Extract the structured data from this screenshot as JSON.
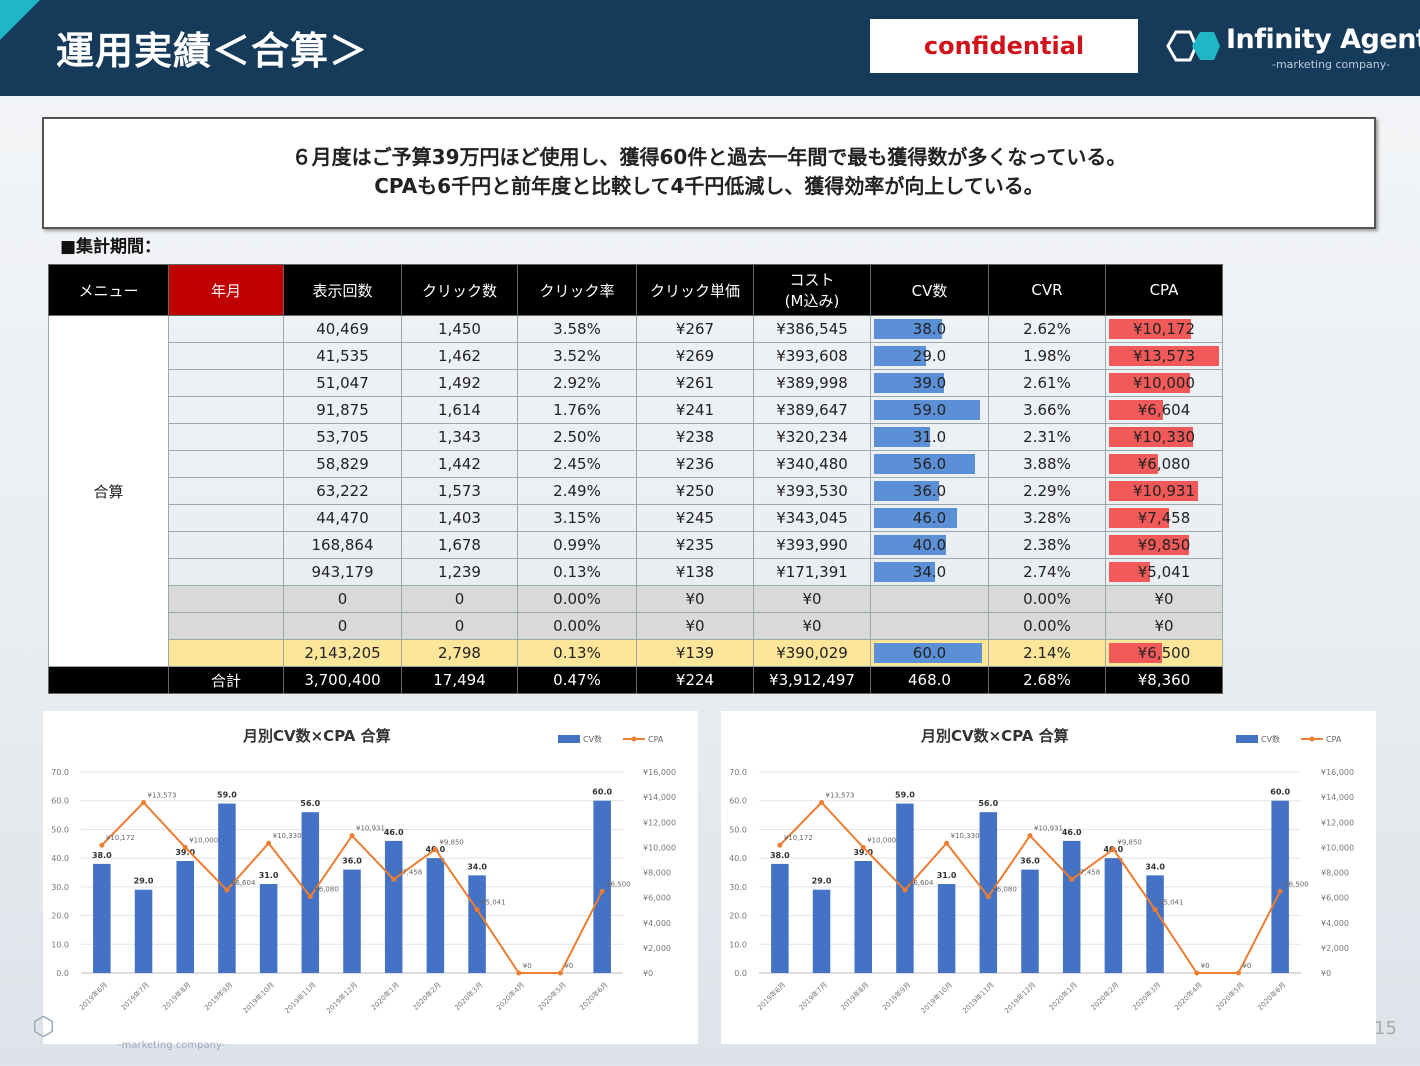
{
  "header": {
    "title": "運用実績＜合算＞",
    "confidential": "confidential",
    "logo_name": "Infinity Agent",
    "logo_sub": "-marketing company-"
  },
  "summary": {
    "line1": "６月度はご予算39万円ほど使用し、獲得60件と過去一年間で最も獲得数が多くなっている。",
    "line2": "CPAも6千円と前年度と比較して4千円低減し、獲得効率が向上している。"
  },
  "period_label": "■集計期間：",
  "table": {
    "headers": [
      "メニュー",
      "年月",
      "表示回数",
      "クリック数",
      "クリック率",
      "クリック単価",
      "コスト\n(M込み)",
      "CV数",
      "CVR",
      "CPA"
    ],
    "menu_label": "合算",
    "cv_max": 60,
    "cpa_max": 13573,
    "rows": [
      {
        "imp": "40,469",
        "clicks": "1,450",
        "ctr": "3.58%",
        "cpc": "¥267",
        "cost": "¥386,545",
        "cv": "38.0",
        "cv_num": 38,
        "cvr": "2.62%",
        "cpa": "¥10,172",
        "cpa_num": 10172,
        "style": ""
      },
      {
        "imp": "41,535",
        "clicks": "1,462",
        "ctr": "3.52%",
        "cpc": "¥269",
        "cost": "¥393,608",
        "cv": "29.0",
        "cv_num": 29,
        "cvr": "1.98%",
        "cpa": "¥13,573",
        "cpa_num": 13573,
        "style": ""
      },
      {
        "imp": "51,047",
        "clicks": "1,492",
        "ctr": "2.92%",
        "cpc": "¥261",
        "cost": "¥389,998",
        "cv": "39.0",
        "cv_num": 39,
        "cvr": "2.61%",
        "cpa": "¥10,000",
        "cpa_num": 10000,
        "style": ""
      },
      {
        "imp": "91,875",
        "clicks": "1,614",
        "ctr": "1.76%",
        "cpc": "¥241",
        "cost": "¥389,647",
        "cv": "59.0",
        "cv_num": 59,
        "cvr": "3.66%",
        "cpa": "¥6,604",
        "cpa_num": 6604,
        "style": ""
      },
      {
        "imp": "53,705",
        "clicks": "1,343",
        "ctr": "2.50%",
        "cpc": "¥238",
        "cost": "¥320,234",
        "cv": "31.0",
        "cv_num": 31,
        "cvr": "2.31%",
        "cpa": "¥10,330",
        "cpa_num": 10330,
        "style": ""
      },
      {
        "imp": "58,829",
        "clicks": "1,442",
        "ctr": "2.45%",
        "cpc": "¥236",
        "cost": "¥340,480",
        "cv": "56.0",
        "cv_num": 56,
        "cvr": "3.88%",
        "cpa": "¥6,080",
        "cpa_num": 6080,
        "style": ""
      },
      {
        "imp": "63,222",
        "clicks": "1,573",
        "ctr": "2.49%",
        "cpc": "¥250",
        "cost": "¥393,530",
        "cv": "36.0",
        "cv_num": 36,
        "cvr": "2.29%",
        "cpa": "¥10,931",
        "cpa_num": 10931,
        "style": ""
      },
      {
        "imp": "44,470",
        "clicks": "1,403",
        "ctr": "3.15%",
        "cpc": "¥245",
        "cost": "¥343,045",
        "cv": "46.0",
        "cv_num": 46,
        "cvr": "3.28%",
        "cpa": "¥7,458",
        "cpa_num": 7458,
        "style": ""
      },
      {
        "imp": "168,864",
        "clicks": "1,678",
        "ctr": "0.99%",
        "cpc": "¥235",
        "cost": "¥393,990",
        "cv": "40.0",
        "cv_num": 40,
        "cvr": "2.38%",
        "cpa": "¥9,850",
        "cpa_num": 9850,
        "style": ""
      },
      {
        "imp": "943,179",
        "clicks": "1,239",
        "ctr": "0.13%",
        "cpc": "¥138",
        "cost": "¥171,391",
        "cv": "34.0",
        "cv_num": 34,
        "cvr": "2.74%",
        "cpa": "¥5,041",
        "cpa_num": 5041,
        "style": ""
      },
      {
        "imp": "0",
        "clicks": "0",
        "ctr": "0.00%",
        "cpc": "¥0",
        "cost": "¥0",
        "cv": "",
        "cv_num": 0,
        "cvr": "0.00%",
        "cpa": "¥0",
        "cpa_num": 0,
        "style": "gray"
      },
      {
        "imp": "0",
        "clicks": "0",
        "ctr": "0.00%",
        "cpc": "¥0",
        "cost": "¥0",
        "cv": "",
        "cv_num": 0,
        "cvr": "0.00%",
        "cpa": "¥0",
        "cpa_num": 0,
        "style": "gray"
      },
      {
        "imp": "2,143,205",
        "clicks": "2,798",
        "ctr": "0.13%",
        "cpc": "¥139",
        "cost": "¥390,029",
        "cv": "60.0",
        "cv_num": 60,
        "cvr": "2.14%",
        "cpa": "¥6,500",
        "cpa_num": 6500,
        "style": "yellow"
      }
    ],
    "total": {
      "label": "合計",
      "imp": "3,700,400",
      "clicks": "17,494",
      "ctr": "0.47%",
      "cpc": "¥224",
      "cost": "¥3,912,497",
      "cv": "468.0",
      "cvr": "2.68%",
      "cpa": "¥8,360"
    }
  },
  "chart_data": [
    {
      "type": "bar",
      "title": "月別CV数×CPA 合算",
      "categories": [
        "2019年6月",
        "2019年7月",
        "2019年8月",
        "2019年9月",
        "2019年10月",
        "2019年11月",
        "2019年12月",
        "2020年1月",
        "2020年2月",
        "2020年3月",
        "2020年4月",
        "2020年5月",
        "2020年6月"
      ],
      "series": [
        {
          "name": "CV数",
          "type": "bar",
          "axis": "left",
          "color": "#4472c4",
          "values": [
            38,
            29,
            39,
            59,
            31,
            56,
            36,
            46,
            40,
            34,
            0,
            0,
            60
          ],
          "labels": [
            "38.0",
            "29.0",
            "39.0",
            "59.0",
            "31.0",
            "56.0",
            "36.0",
            "46.0",
            "40.0",
            "34.0",
            "",
            "",
            "60.0"
          ]
        },
        {
          "name": "CPA",
          "type": "line",
          "axis": "right",
          "color": "#ed7d31",
          "values": [
            10172,
            13573,
            10000,
            6604,
            10330,
            6080,
            10931,
            7458,
            9850,
            5041,
            0,
            0,
            6500
          ],
          "labels": [
            "¥10,172",
            "¥13,573",
            "¥10,000",
            "¥6,604",
            "¥10,330",
            "¥6,080",
            "¥10,931",
            "¥7,458",
            "¥9,850",
            "¥5,041",
            "¥0",
            "¥0",
            "¥6,500"
          ]
        }
      ],
      "ylim": [
        0,
        70
      ],
      "yticks": [
        "0.0",
        "10.0",
        "20.0",
        "30.0",
        "40.0",
        "50.0",
        "60.0",
        "70.0"
      ],
      "y2lim": [
        0,
        16000
      ],
      "y2ticks": [
        "¥0",
        "¥2,000",
        "¥4,000",
        "¥6,000",
        "¥8,000",
        "¥10,000",
        "¥12,000",
        "¥14,000",
        "¥16,000"
      ],
      "legend": "top-right",
      "grid": true
    },
    {
      "type": "bar",
      "title": "月別CV数×CPA 合算",
      "categories": [
        "2019年6月",
        "2019年7月",
        "2019年8月",
        "2019年9月",
        "2019年10月",
        "2019年11月",
        "2019年12月",
        "2020年1月",
        "2020年2月",
        "2020年3月",
        "2020年4月",
        "2020年5月",
        "2020年6月"
      ],
      "series": [
        {
          "name": "CV数",
          "type": "bar",
          "axis": "left",
          "color": "#4472c4",
          "values": [
            38,
            29,
            39,
            59,
            31,
            56,
            36,
            46,
            40,
            34,
            0,
            0,
            60
          ],
          "labels": [
            "38.0",
            "29.0",
            "39.0",
            "59.0",
            "31.0",
            "56.0",
            "36.0",
            "46.0",
            "40.0",
            "34.0",
            "",
            "",
            "60.0"
          ]
        },
        {
          "name": "CPA",
          "type": "line",
          "axis": "right",
          "color": "#ed7d31",
          "values": [
            10172,
            13573,
            10000,
            6604,
            10330,
            6080,
            10931,
            7458,
            9850,
            5041,
            0,
            0,
            6500
          ],
          "labels": [
            "¥10,172",
            "¥13,573",
            "¥10,000",
            "¥6,604",
            "¥10,330",
            "¥6,080",
            "¥10,931",
            "¥7,458",
            "¥9,850",
            "¥5,041",
            "¥0",
            "¥0",
            "¥6,500"
          ]
        }
      ],
      "ylim": [
        0,
        70
      ],
      "yticks": [
        "0.0",
        "10.0",
        "20.0",
        "30.0",
        "40.0",
        "50.0",
        "60.0",
        "70.0"
      ],
      "y2lim": [
        0,
        16000
      ],
      "y2ticks": [
        "¥0",
        "¥2,000",
        "¥4,000",
        "¥6,000",
        "¥8,000",
        "¥10,000",
        "¥12,000",
        "¥14,000",
        "¥16,000"
      ],
      "legend": "top-right",
      "grid": true
    }
  ],
  "footer": {
    "page_number": "15",
    "logo_sub": "-marketing company-"
  }
}
